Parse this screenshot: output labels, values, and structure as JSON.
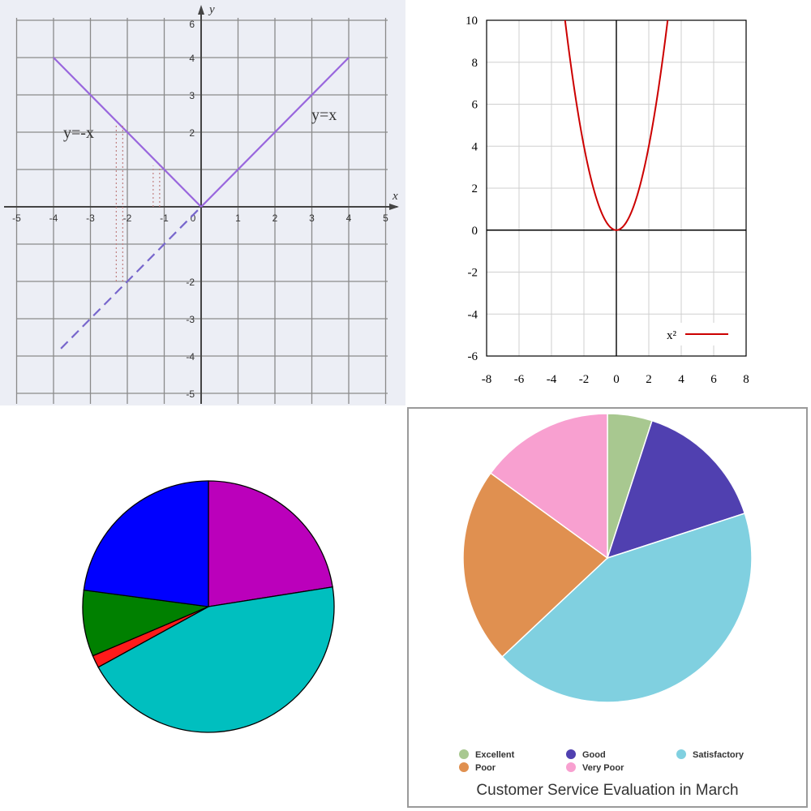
{
  "chart_data": [
    {
      "type": "line",
      "x_range": [
        -5,
        6
      ],
      "y_range": [
        -5,
        6
      ],
      "x_label": "x",
      "y_label": "y",
      "x_tick_labels": [
        "-5",
        "-4",
        "-3",
        "-2",
        "-1",
        "0",
        "1",
        "2",
        "3",
        "4",
        "5"
      ],
      "y_tick_labels": [
        "6",
        "4",
        "3",
        "2",
        "-2",
        "-3",
        "-4",
        "-5"
      ],
      "grid": true,
      "series": [
        {
          "name": "y=-x",
          "color": "#9966dd",
          "style": "solid",
          "x": [
            -4,
            0
          ],
          "y": [
            4,
            0
          ]
        },
        {
          "name": "y=x",
          "color": "#9966dd",
          "style": "solid",
          "x": [
            0,
            4
          ],
          "y": [
            0,
            4
          ]
        },
        {
          "color": "#7766cc",
          "style": "dashed",
          "x": [
            -3.8,
            0
          ],
          "y": [
            -3.8,
            0
          ]
        }
      ],
      "dotted_guides": [
        {
          "x": [
            -2.3,
            -2.3
          ],
          "y": [
            -2,
            2.2
          ]
        },
        {
          "x": [
            -1.3,
            -1.3
          ],
          "y": [
            0,
            1.1
          ]
        }
      ]
    },
    {
      "type": "line",
      "x_range": [
        -8,
        8
      ],
      "y_range": [
        -6,
        10
      ],
      "x_tick_labels": [
        "-8",
        "-6",
        "-4",
        "-2",
        "0",
        "2",
        "4",
        "6",
        "8"
      ],
      "y_tick_labels": [
        "-6",
        "-4",
        "-2",
        "0",
        "2",
        "4",
        "6",
        "8",
        "10"
      ],
      "grid": true,
      "legend_position": "bottom-right",
      "series": [
        {
          "name": "x²",
          "color": "#cc0000",
          "function": "x^2",
          "x_range": [
            -3.2,
            3.2
          ]
        }
      ]
    },
    {
      "type": "pie",
      "start": "top, clockwise",
      "slices": [
        {
          "value": 22.5,
          "color": "#bb00bb"
        },
        {
          "value": 44.5,
          "color": "#00bfbf"
        },
        {
          "value": 1.6,
          "color": "#ff1a1a"
        },
        {
          "value": 8.5,
          "color": "#008000"
        },
        {
          "value": 22.9,
          "color": "#0000ff"
        }
      ]
    },
    {
      "type": "pie",
      "title": "Customer Service Evaluation in March",
      "legend_position": "bottom",
      "start": "top, clockwise",
      "slices": [
        {
          "label": "Excellent",
          "value": 5,
          "color": "#a8c890"
        },
        {
          "label": "Good",
          "value": 15,
          "color": "#5040b0"
        },
        {
          "label": "Satisfactory",
          "value": 43,
          "color": "#80d0e0"
        },
        {
          "label": "Poor",
          "value": 22,
          "color": "#e09050"
        },
        {
          "label": "Very Poor",
          "value": 15,
          "color": "#f8a0d0"
        }
      ]
    }
  ]
}
